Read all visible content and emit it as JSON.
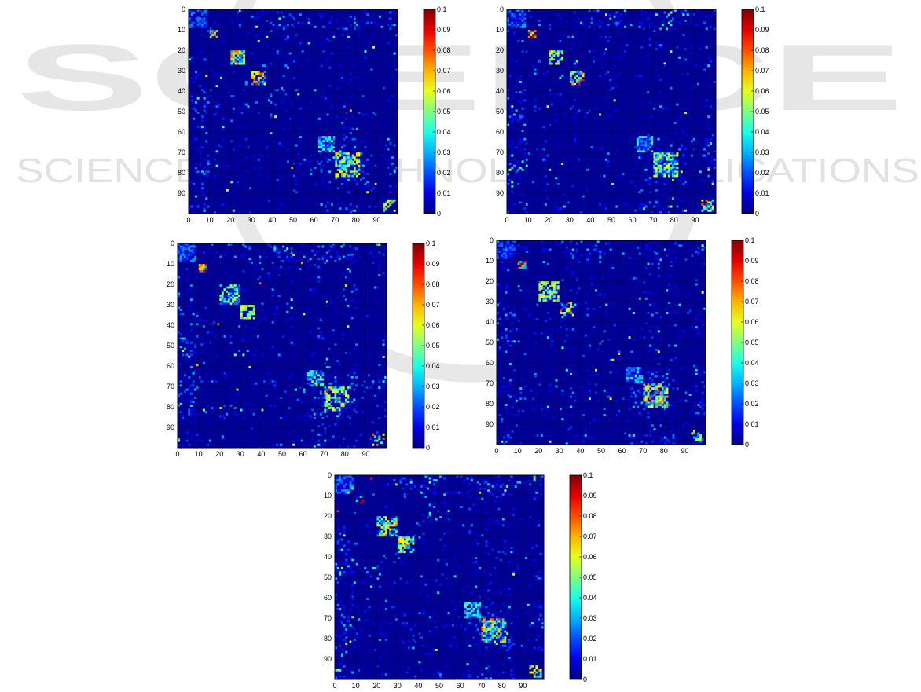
{
  "watermark": {
    "big_text": "SCIENCE",
    "small_text": "SCIENCE AND TECHNOLOGY PUBLICATIONS",
    "color": "#c8c8c8"
  },
  "chart_data": [
    {
      "type": "heatmap",
      "panel": "top-left",
      "x_ticks": [
        "0",
        "10",
        "20",
        "30",
        "40",
        "50",
        "60",
        "70",
        "80",
        "90"
      ],
      "y_ticks": [
        "0",
        "10",
        "20",
        "30",
        "40",
        "50",
        "60",
        "70",
        "80",
        "90"
      ],
      "colorbar_ticks": [
        "0.1",
        "0.09",
        "0.08",
        "0.07",
        "0.06",
        "0.05",
        "0.04",
        "0.03",
        "0.02",
        "0.01",
        "0"
      ],
      "colormap": "jet",
      "grid": true,
      "vmin": 0,
      "vmax": 0.1,
      "size": 100,
      "blocks": [
        [
          0,
          9,
          0.04
        ],
        [
          10,
          14,
          0.1
        ],
        [
          20,
          27,
          0.08
        ],
        [
          30,
          37,
          0.09
        ],
        [
          62,
          70,
          0.05
        ],
        [
          70,
          82,
          0.07
        ]
      ],
      "seed": 11
    },
    {
      "type": "heatmap",
      "panel": "top-right",
      "x_ticks": [
        "0",
        "10",
        "20",
        "30",
        "40",
        "50",
        "60",
        "70",
        "80",
        "90"
      ],
      "y_ticks": [
        "0",
        "10",
        "20",
        "30",
        "40",
        "50",
        "60",
        "70",
        "80",
        "90"
      ],
      "colorbar_ticks": [
        "0.1",
        "0.09",
        "0.08",
        "0.07",
        "0.06",
        "0.05",
        "0.04",
        "0.03",
        "0.02",
        "0.01",
        "0"
      ],
      "colormap": "jet",
      "grid": true,
      "vmin": 0,
      "vmax": 0.1,
      "size": 100,
      "blocks": [
        [
          0,
          9,
          0.03
        ],
        [
          10,
          14,
          0.1
        ],
        [
          20,
          27,
          0.08
        ],
        [
          30,
          37,
          0.09
        ],
        [
          62,
          70,
          0.05
        ],
        [
          70,
          82,
          0.07
        ]
      ],
      "seed": 23
    },
    {
      "type": "heatmap",
      "panel": "middle-left",
      "x_ticks": [
        "0",
        "10",
        "20",
        "30",
        "40",
        "50",
        "60",
        "70",
        "80",
        "90"
      ],
      "y_ticks": [
        "0",
        "10",
        "20",
        "30",
        "40",
        "50",
        "60",
        "70",
        "80",
        "90"
      ],
      "colorbar_ticks": [
        "0.1",
        "0.09",
        "0.08",
        "0.07",
        "0.06",
        "0.05",
        "0.04",
        "0.03",
        "0.02",
        "0.01",
        "0"
      ],
      "colormap": "jet",
      "grid": true,
      "vmin": 0,
      "vmax": 0.1,
      "size": 100,
      "blocks": [
        [
          0,
          9,
          0.03
        ],
        [
          10,
          14,
          0.1
        ],
        [
          20,
          30,
          0.06
        ],
        [
          30,
          37,
          0.08
        ],
        [
          62,
          70,
          0.05
        ],
        [
          70,
          82,
          0.07
        ]
      ],
      "seed": 37
    },
    {
      "type": "heatmap",
      "panel": "middle-right",
      "x_ticks": [
        "0",
        "10",
        "20",
        "30",
        "40",
        "50",
        "60",
        "70",
        "80",
        "90"
      ],
      "y_ticks": [
        "0",
        "10",
        "20",
        "30",
        "40",
        "50",
        "60",
        "70",
        "80",
        "90"
      ],
      "colorbar_ticks": [
        "0.1",
        "0.09",
        "0.08",
        "0.07",
        "0.06",
        "0.05",
        "0.04",
        "0.03",
        "0.02",
        "0.01",
        "0"
      ],
      "colormap": "jet",
      "grid": true,
      "vmin": 0,
      "vmax": 0.1,
      "size": 100,
      "blocks": [
        [
          0,
          9,
          0.03
        ],
        [
          10,
          14,
          0.1
        ],
        [
          20,
          30,
          0.07
        ],
        [
          30,
          37,
          0.08
        ],
        [
          62,
          70,
          0.05
        ],
        [
          70,
          82,
          0.08
        ]
      ],
      "seed": 51
    },
    {
      "type": "heatmap",
      "panel": "bottom-center",
      "x_ticks": [
        "0",
        "10",
        "20",
        "30",
        "40",
        "50",
        "60",
        "70",
        "80",
        "90"
      ],
      "y_ticks": [
        "0",
        "10",
        "20",
        "30",
        "40",
        "50",
        "60",
        "70",
        "80",
        "90"
      ],
      "colorbar_ticks": [
        "0.1",
        "0.09",
        "0.08",
        "0.07",
        "0.06",
        "0.05",
        "0.04",
        "0.03",
        "0.02",
        "0.01",
        "0"
      ],
      "colormap": "jet",
      "grid": true,
      "vmin": 0,
      "vmax": 0.1,
      "size": 100,
      "blocks": [
        [
          0,
          9,
          0.03
        ],
        [
          10,
          14,
          0.1
        ],
        [
          20,
          30,
          0.07
        ],
        [
          30,
          38,
          0.08
        ],
        [
          62,
          70,
          0.05
        ],
        [
          70,
          82,
          0.08
        ]
      ],
      "seed": 67
    }
  ]
}
